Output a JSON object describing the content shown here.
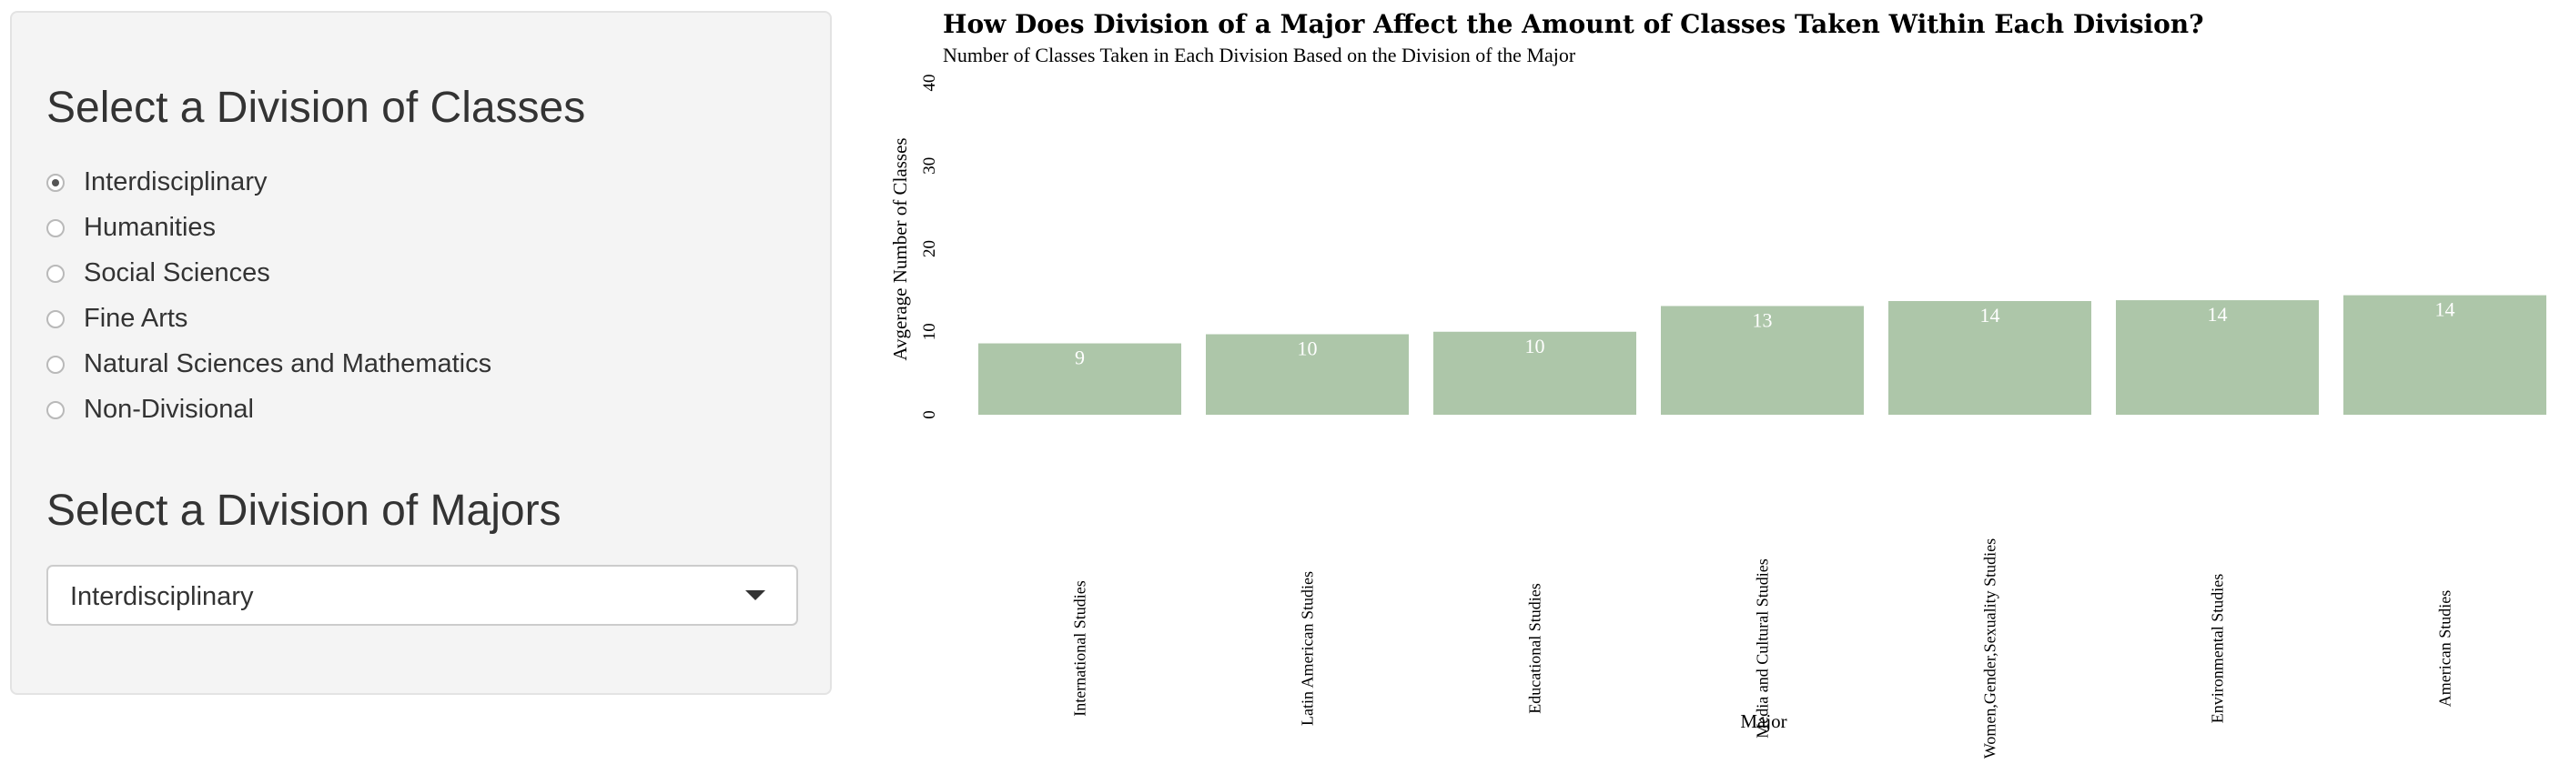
{
  "sidebar": {
    "classes_title": "Select a Division of Classes",
    "division_options": [
      {
        "label": "Interdisciplinary",
        "selected": true
      },
      {
        "label": "Humanities",
        "selected": false
      },
      {
        "label": "Social Sciences",
        "selected": false
      },
      {
        "label": "Fine Arts",
        "selected": false
      },
      {
        "label": "Natural Sciences and Mathematics",
        "selected": false
      },
      {
        "label": "Non-Divisional",
        "selected": false
      }
    ],
    "majors_title": "Select a Division of Majors",
    "majors_select_value": "Interdisciplinary"
  },
  "colors": {
    "bar_fill": "#adc6a9",
    "bar_label": "#ffffff",
    "panel_bg": "#f4f4f4"
  },
  "chart_data": {
    "type": "bar",
    "title": "How Does Division of a Major Affect the Amount of Classes Taken Within Each Division?",
    "subtitle": "Number of Classes Taken in Each Division Based on the Division of the Major",
    "xlabel": "Major",
    "ylabel": "Avgerage Number of Classes",
    "ylim": [
      0,
      40
    ],
    "yticks": [
      0,
      10,
      20,
      30,
      40
    ],
    "grid": false,
    "categories": [
      "International Studies",
      "Latin American Studies",
      "Educational Studies",
      "Media and Cultural Studies",
      "Women,Gender,Sexuality Studies",
      "Environmental Studies",
      "American Studies"
    ],
    "values": [
      8.6,
      9.7,
      10.0,
      13.1,
      13.7,
      13.8,
      14.4
    ],
    "data_labels": [
      "9",
      "10",
      "10",
      "13",
      "14",
      "14",
      "14"
    ]
  }
}
